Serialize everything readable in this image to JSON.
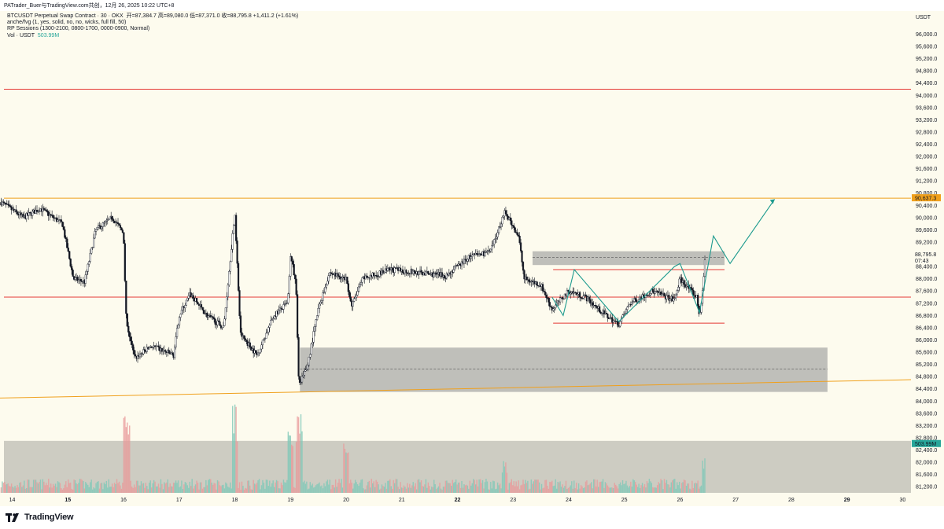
{
  "caption": "PATrader_Buer与TradingView.com共创，12月 26, 2025 10:22 UTC+8",
  "legend": {
    "symbol": "BTCUSDT Perpetual Swap Contract · 30 · OKX",
    "ohlc": "开=87,384.7  高=89,080.0  低=87,371.0  收=88,795.8  +1,411.2 (+1.61%)",
    "indicator_1": "anche/fvg (1, yes, solid, no, no, wicks, full fill, 50)",
    "indicator_2": "RP Sessions (1300-2100, 0800-1700, 0000-0900, Normal)",
    "volume_label": "Vol · USDT",
    "volume_value": "503.99M"
  },
  "colors": {
    "background": "#fdfbee",
    "up_candle": "#ffffff",
    "down_candle": "#131722",
    "red_level": "#e53935",
    "orange_level": "#f0a01c",
    "zone": "#9e9e9e",
    "projection": "#1c9a8e",
    "price_badge": "#f0a01c",
    "countdown_badge": "#9e9e9e",
    "volume_badge": "#26a69a"
  },
  "logo": {
    "text": "TradingView",
    "icon": "tradingview-logo-icon"
  },
  "chart_data": {
    "type": "candlestick",
    "axis_unit": "USDT",
    "y_ticks": [
      "81,200.0",
      "81,600.0",
      "82,000.0",
      "82,400.0",
      "82,800.0",
      "83,200.0",
      "83,600.0",
      "84,000.0",
      "84,400.0",
      "84,800.0",
      "85,200.0",
      "85,600.0",
      "86,000.0",
      "86,400.0",
      "86,800.0",
      "87,200.0",
      "87,600.0",
      "88,000.0",
      "88,400.0",
      "89,200.0",
      "89,600.0",
      "90,000.0",
      "90,400.0",
      "90,800.0",
      "91,200.0",
      "91,600.0",
      "92,000.0",
      "92,400.0",
      "92,800.0",
      "93,200.0",
      "93,600.0",
      "94,000.0",
      "94,400.0",
      "94,800.0",
      "95,200.0",
      "95,600.0",
      "96,000.0"
    ],
    "y_tick_values": [
      81200,
      81600,
      82000,
      82400,
      82800,
      83200,
      83600,
      84000,
      84400,
      84800,
      85200,
      85600,
      86000,
      86400,
      86800,
      87200,
      87600,
      88000,
      88400,
      89200,
      89600,
      90000,
      90400,
      90800,
      91200,
      91600,
      92000,
      92400,
      92800,
      93200,
      93600,
      94000,
      94400,
      94800,
      95200,
      95600,
      96000
    ],
    "x_ticks": [
      {
        "label": "14",
        "day": 14,
        "bold": false
      },
      {
        "label": "15",
        "day": 15,
        "bold": true
      },
      {
        "label": "16",
        "day": 16,
        "bold": false
      },
      {
        "label": "17",
        "day": 17,
        "bold": false
      },
      {
        "label": "18",
        "day": 18,
        "bold": false
      },
      {
        "label": "19",
        "day": 19,
        "bold": false
      },
      {
        "label": "20",
        "day": 20,
        "bold": false
      },
      {
        "label": "21",
        "day": 21,
        "bold": false
      },
      {
        "label": "22",
        "day": 22,
        "bold": true
      },
      {
        "label": "23",
        "day": 23,
        "bold": false
      },
      {
        "label": "24",
        "day": 24,
        "bold": false
      },
      {
        "label": "25",
        "day": 25,
        "bold": false
      },
      {
        "label": "26",
        "day": 26,
        "bold": false
      },
      {
        "label": "27",
        "day": 27,
        "bold": false
      },
      {
        "label": "28",
        "day": 28,
        "bold": false
      },
      {
        "label": "29",
        "day": 29,
        "bold": true
      },
      {
        "label": "30",
        "day": 30,
        "bold": false
      }
    ],
    "x_range": [
      13.78,
      30.15
    ],
    "y_range": [
      81000,
      96500
    ],
    "price_path": [
      [
        13.8,
        90500
      ],
      [
        14.2,
        90000
      ],
      [
        14.5,
        90300
      ],
      [
        14.9,
        89800
      ],
      [
        15.1,
        88000
      ],
      [
        15.3,
        87900
      ],
      [
        15.5,
        89600
      ],
      [
        15.8,
        90000
      ],
      [
        16.0,
        89500
      ],
      [
        16.05,
        86600
      ],
      [
        16.2,
        85400
      ],
      [
        16.5,
        85800
      ],
      [
        16.9,
        85500
      ],
      [
        17.0,
        86800
      ],
      [
        17.2,
        87500
      ],
      [
        17.5,
        86800
      ],
      [
        17.8,
        86400
      ],
      [
        18.0,
        90200
      ],
      [
        18.1,
        86200
      ],
      [
        18.4,
        85500
      ],
      [
        18.7,
        86800
      ],
      [
        18.95,
        87200
      ],
      [
        19.0,
        88800
      ],
      [
        19.1,
        87800
      ],
      [
        19.15,
        84500
      ],
      [
        19.3,
        85100
      ],
      [
        19.5,
        87000
      ],
      [
        19.7,
        88200
      ],
      [
        20.0,
        88000
      ],
      [
        20.1,
        87100
      ],
      [
        20.3,
        88000
      ],
      [
        20.8,
        88300
      ],
      [
        21.3,
        88200
      ],
      [
        21.8,
        88100
      ],
      [
        22.2,
        88700
      ],
      [
        22.6,
        88900
      ],
      [
        22.85,
        90200
      ],
      [
        23.1,
        89400
      ],
      [
        23.2,
        88000
      ],
      [
        23.5,
        87800
      ],
      [
        23.7,
        87000
      ],
      [
        24.0,
        87600
      ],
      [
        24.3,
        87400
      ],
      [
        24.6,
        86900
      ],
      [
        24.9,
        86500
      ],
      [
        25.1,
        87200
      ],
      [
        25.5,
        87600
      ],
      [
        25.9,
        87300
      ],
      [
        26.0,
        88000
      ],
      [
        26.3,
        87400
      ],
      [
        26.35,
        86800
      ],
      [
        26.4,
        87400
      ],
      [
        26.45,
        88800
      ]
    ],
    "volume_spikes": [
      [
        16.05,
        0.85
      ],
      [
        18.0,
        0.95
      ],
      [
        19.0,
        0.7
      ],
      [
        19.15,
        0.85
      ],
      [
        20.0,
        0.55
      ],
      [
        22.85,
        0.4
      ],
      [
        26.45,
        0.45
      ]
    ],
    "levels": [
      {
        "kind": "horizontal",
        "price": 94200,
        "color": "red"
      },
      {
        "kind": "horizontal",
        "price": 90637,
        "color": "orange"
      },
      {
        "kind": "horizontal",
        "price": 87400,
        "color": "red"
      },
      {
        "kind": "segment",
        "price": 88300,
        "from": 23.72,
        "to": 26.8,
        "color": "red"
      },
      {
        "kind": "segment",
        "price": 86550,
        "from": 23.72,
        "to": 26.8,
        "color": "red"
      },
      {
        "kind": "trendline",
        "from": [
          13.78,
          84100
        ],
        "to": [
          30.15,
          84700
        ],
        "color": "orange"
      }
    ],
    "zones": [
      {
        "from": 19.17,
        "to": 28.65,
        "top": 85750,
        "bottom": 84300,
        "mid": 85050
      },
      {
        "from": 23.35,
        "to": 26.8,
        "top": 88900,
        "bottom": 88450,
        "mid": 88700
      }
    ],
    "projection_path": [
      [
        23.7,
        87400
      ],
      [
        23.9,
        86800
      ],
      [
        24.1,
        88300
      ],
      [
        24.9,
        86600
      ],
      [
        25.9,
        88400
      ],
      [
        26.0,
        88500
      ],
      [
        26.35,
        86900
      ],
      [
        26.6,
        89400
      ],
      [
        26.9,
        88500
      ],
      [
        27.7,
        90600
      ]
    ],
    "price_labels": {
      "orange_level": "90,637.3",
      "current": "88,795.8",
      "countdown": "07:43",
      "volume": "503.99M"
    }
  }
}
